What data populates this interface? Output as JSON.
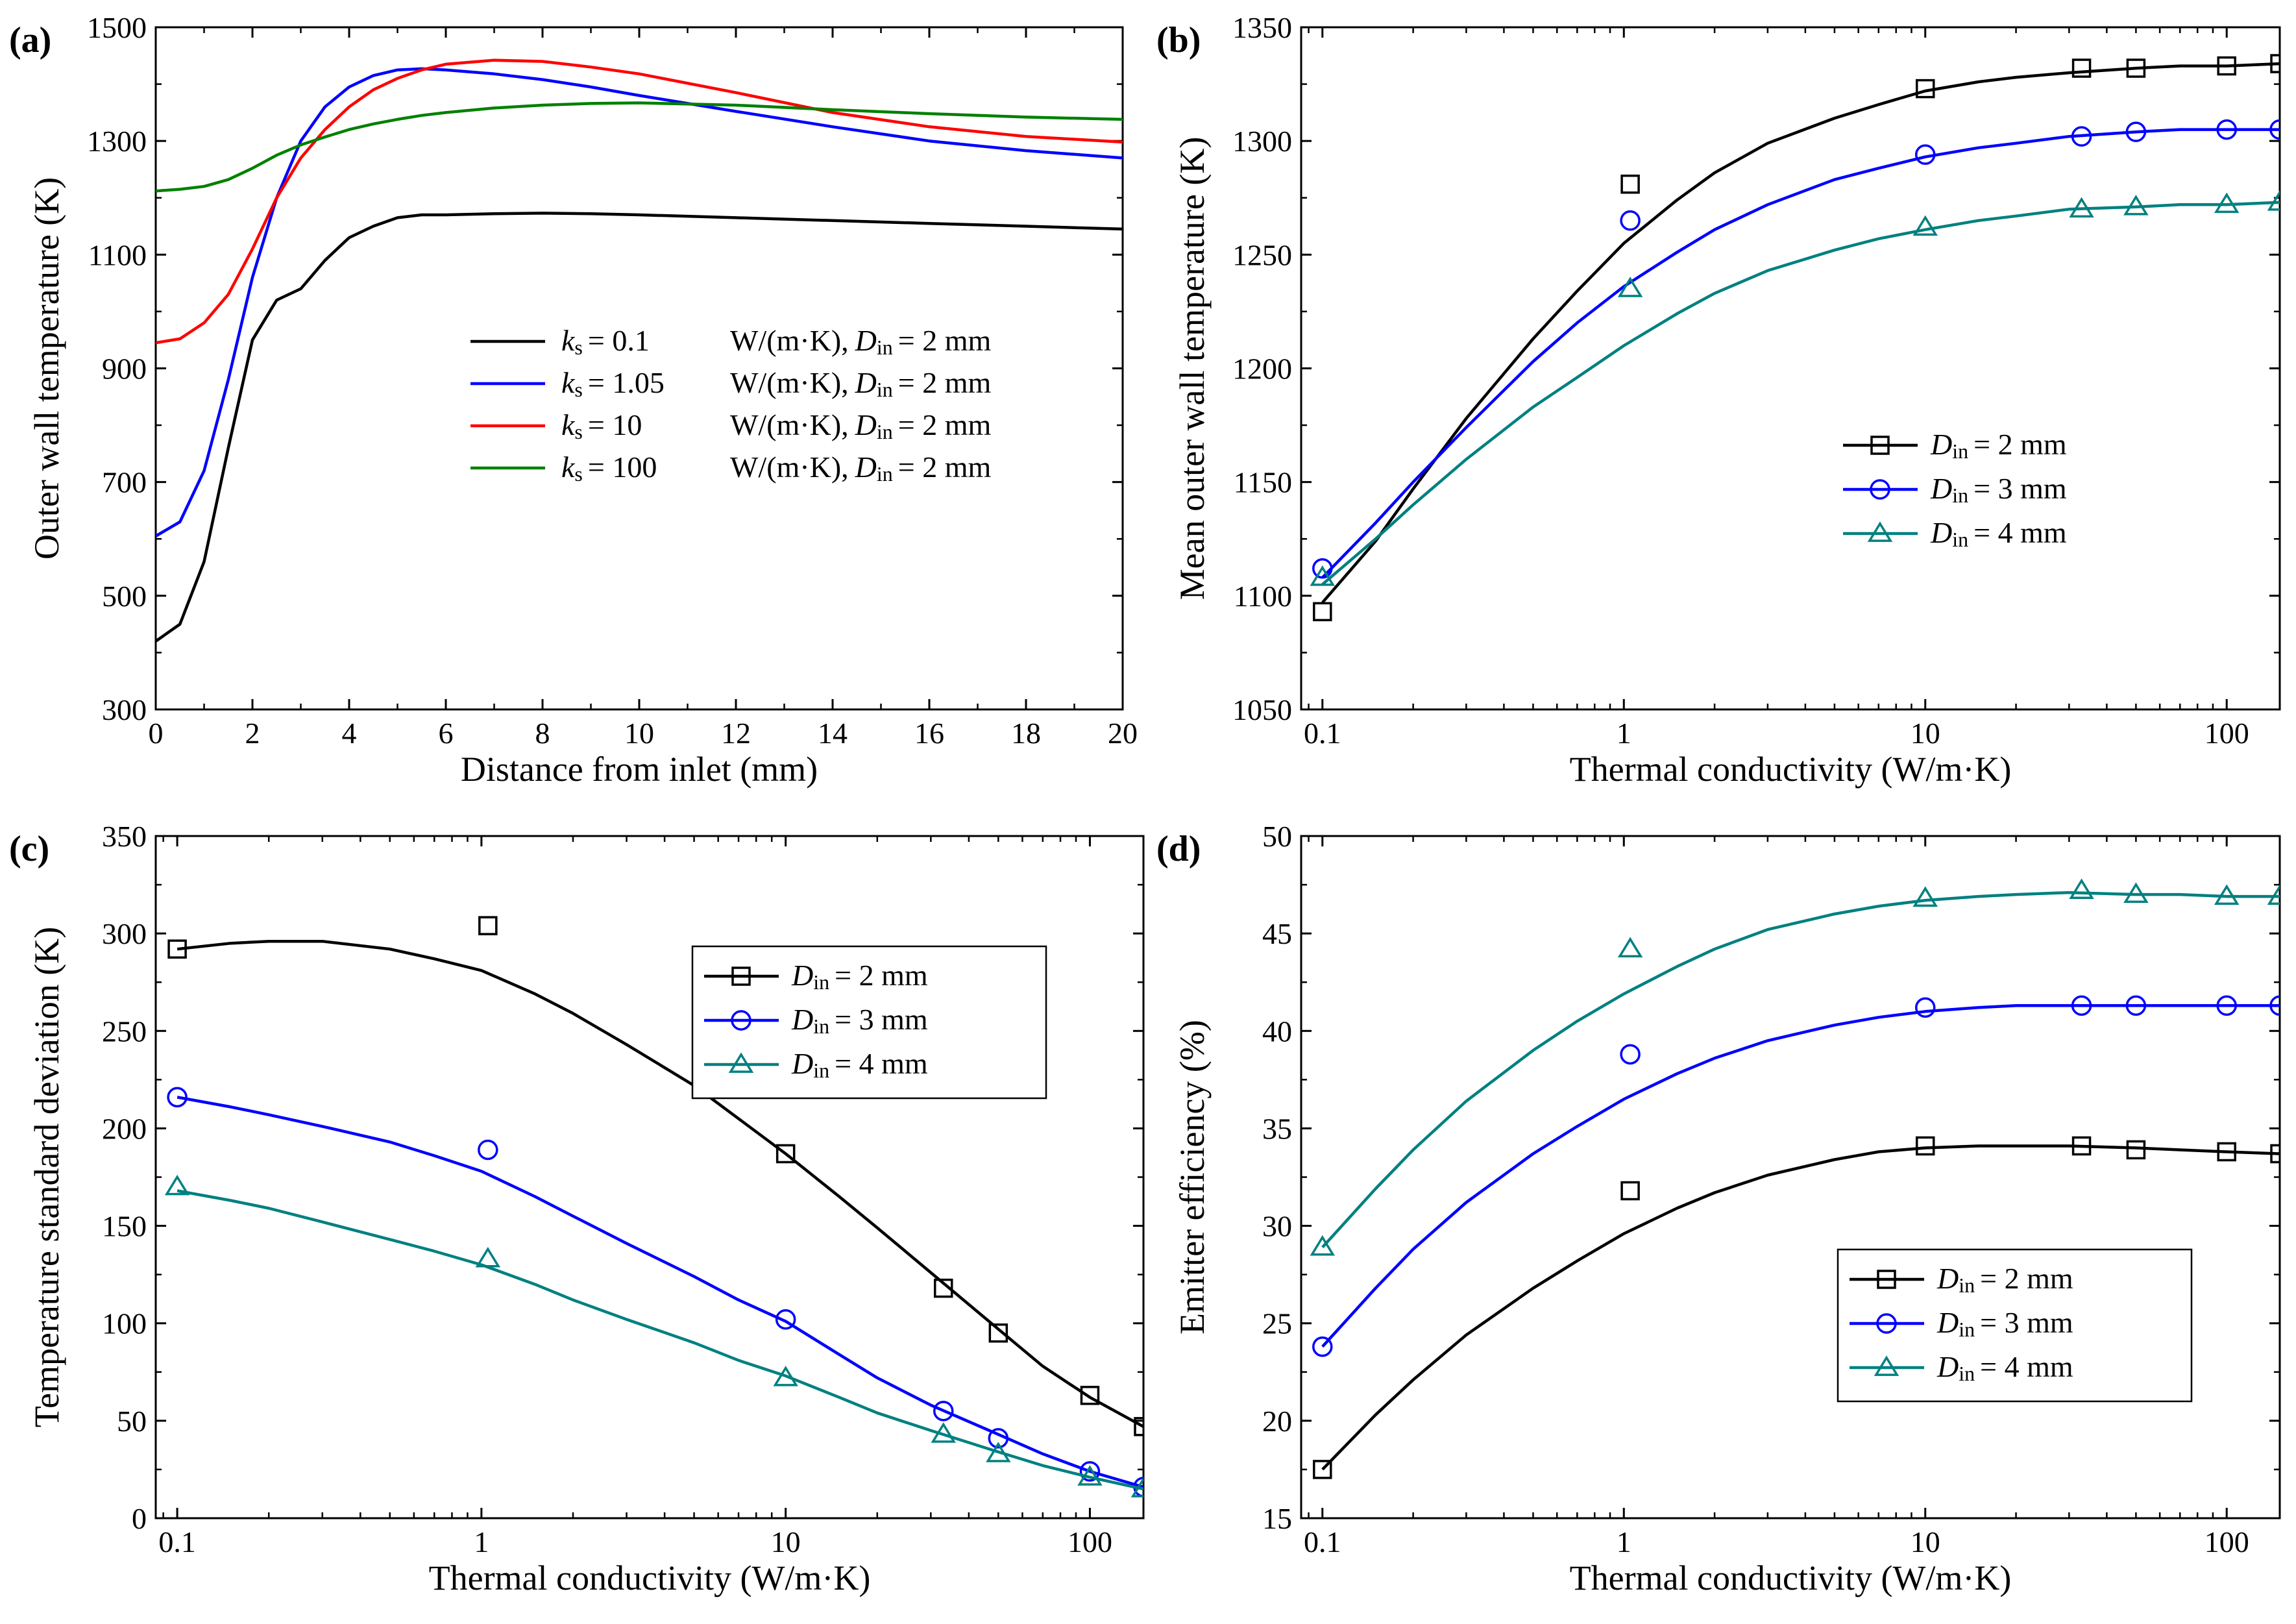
{
  "figure_label": "Four-panel figure",
  "chart_data": [
    {
      "id": "a",
      "panel_label": "(a)",
      "type": "line",
      "xscale": "linear",
      "xlabel": "Distance from inlet (mm)",
      "ylabel": "Outer wall temperature (K)",
      "xlim": [
        0,
        20
      ],
      "ylim": [
        300,
        1500
      ],
      "xticks": [
        0,
        2,
        4,
        6,
        8,
        10,
        12,
        14,
        16,
        18,
        20
      ],
      "xtick_labels": [
        "0",
        "2",
        "4",
        "6",
        "8",
        "10",
        "12",
        "14",
        "16",
        "18",
        "20"
      ],
      "yticks": [
        300,
        500,
        700,
        900,
        1100,
        1300,
        1500
      ],
      "ytick_labels": [
        "300",
        "500",
        "700",
        "900",
        "1100",
        "1300",
        "1500"
      ],
      "legend_position": "center-right",
      "series": [
        {
          "name": "ks = 0.1 W/(m·K), Din = 2 mm",
          "k_value": "0.1",
          "color": "#000000",
          "x": [
            0,
            0.5,
            1,
            1.5,
            2,
            2.5,
            3,
            3.5,
            4,
            4.5,
            5,
            5.5,
            6,
            7,
            8,
            9,
            10,
            12,
            14,
            16,
            18,
            20
          ],
          "y": [
            420,
            450,
            560,
            760,
            950,
            1020,
            1040,
            1090,
            1130,
            1150,
            1165,
            1170,
            1170,
            1172,
            1173,
            1172,
            1170,
            1165,
            1160,
            1155,
            1150,
            1145
          ]
        },
        {
          "name": "ks = 1.05 W/(m·K), Din = 2 mm",
          "k_value": "1.05",
          "color": "#0000ff",
          "x": [
            0,
            0.5,
            1,
            1.5,
            2,
            2.5,
            3,
            3.5,
            4,
            4.5,
            5,
            5.5,
            6,
            7,
            8,
            9,
            10,
            12,
            14,
            16,
            18,
            20
          ],
          "y": [
            605,
            630,
            720,
            880,
            1060,
            1200,
            1300,
            1360,
            1395,
            1415,
            1425,
            1427,
            1425,
            1418,
            1408,
            1395,
            1380,
            1352,
            1325,
            1300,
            1283,
            1270
          ]
        },
        {
          "name": "ks = 10 W/(m·K), Din = 2 mm",
          "k_value": "10",
          "color": "#ff0000",
          "x": [
            0,
            0.5,
            1,
            1.5,
            2,
            2.5,
            3,
            3.5,
            4,
            4.5,
            5,
            5.5,
            6,
            7,
            8,
            9,
            10,
            12,
            14,
            16,
            18,
            20
          ],
          "y": [
            945,
            952,
            980,
            1030,
            1110,
            1200,
            1270,
            1320,
            1360,
            1390,
            1410,
            1425,
            1435,
            1442,
            1440,
            1430,
            1418,
            1385,
            1350,
            1325,
            1308,
            1298
          ]
        },
        {
          "name": "ks = 100 W/(m·K), Din = 2 mm",
          "k_value": "100",
          "color": "#008000",
          "x": [
            0,
            0.5,
            1,
            1.5,
            2,
            2.5,
            3,
            3.5,
            4,
            4.5,
            5,
            5.5,
            6,
            7,
            8,
            9,
            10,
            12,
            14,
            16,
            18,
            20
          ],
          "y": [
            1212,
            1215,
            1220,
            1232,
            1252,
            1275,
            1293,
            1307,
            1320,
            1330,
            1338,
            1345,
            1350,
            1358,
            1363,
            1366,
            1367,
            1363,
            1355,
            1348,
            1342,
            1338
          ]
        }
      ],
      "legend": [
        {
          "sym": "k",
          "sub": "s",
          "eq": "= 0.1",
          "unit": "W/(m·K),",
          "sym2": "D",
          "sub2": "in",
          "eq2": "= 2 mm",
          "color": "#000000"
        },
        {
          "sym": "k",
          "sub": "s",
          "eq": "= 1.05",
          "unit": "W/(m·K),",
          "sym2": "D",
          "sub2": "in",
          "eq2": "= 2 mm",
          "color": "#0000ff"
        },
        {
          "sym": "k",
          "sub": "s",
          "eq": "= 10",
          "unit": "W/(m·K),",
          "sym2": "D",
          "sub2": "in",
          "eq2": "= 2 mm",
          "color": "#ff0000"
        },
        {
          "sym": "k",
          "sub": "s",
          "eq": "= 100",
          "unit": "W/(m·K),",
          "sym2": "D",
          "sub2": "in",
          "eq2": "= 2 mm",
          "color": "#008000"
        }
      ]
    },
    {
      "id": "b",
      "panel_label": "(b)",
      "type": "scatter",
      "xscale": "log",
      "xlabel": "Thermal conductivity (W/m·K)",
      "ylabel": "Mean outer wall temperature (K)",
      "xlim": [
        0.085,
        150
      ],
      "ylim": [
        1050,
        1350
      ],
      "xticks": [
        0.1,
        1,
        10,
        100
      ],
      "xtick_labels": [
        "0.1",
        "1",
        "10",
        "100"
      ],
      "yticks": [
        1050,
        1100,
        1150,
        1200,
        1250,
        1300,
        1350
      ],
      "ytick_labels": [
        "1050",
        "1100",
        "1150",
        "1200",
        "1250",
        "1300",
        "1350"
      ],
      "legend_position": "center-right",
      "series": [
        {
          "name": "Din = 2 mm",
          "label_d": "D",
          "label_sub": "in",
          "label_eq": "= 2 mm",
          "marker": "square",
          "color": "#000000",
          "points_x": [
            0.1,
            1.05,
            10,
            33,
            50,
            100,
            150
          ],
          "points_y": [
            1093,
            1281,
            1323,
            1332,
            1332,
            1333,
            1334
          ],
          "fit_x": [
            0.1,
            0.15,
            0.2,
            0.3,
            0.5,
            0.7,
            1,
            1.5,
            2,
            3,
            5,
            7,
            10,
            15,
            20,
            30,
            50,
            70,
            100,
            150
          ],
          "fit_y": [
            1097,
            1124,
            1147,
            1178,
            1213,
            1234,
            1255,
            1274,
            1286,
            1299,
            1310,
            1316,
            1322,
            1326,
            1328,
            1330,
            1332,
            1333,
            1333,
            1334
          ]
        },
        {
          "name": "Din = 3 mm",
          "label_d": "D",
          "label_sub": "in",
          "label_eq": "= 3 mm",
          "marker": "circle",
          "color": "#0000ff",
          "points_x": [
            0.1,
            1.05,
            10,
            33,
            50,
            100,
            150
          ],
          "points_y": [
            1112,
            1265,
            1294,
            1302,
            1304,
            1305,
            1305
          ],
          "fit_x": [
            0.1,
            0.15,
            0.2,
            0.3,
            0.5,
            0.7,
            1,
            1.5,
            2,
            3,
            5,
            7,
            10,
            15,
            20,
            30,
            50,
            70,
            100,
            150
          ],
          "fit_y": [
            1108,
            1132,
            1150,
            1174,
            1203,
            1220,
            1236,
            1251,
            1261,
            1272,
            1283,
            1288,
            1293,
            1297,
            1299,
            1302,
            1304,
            1305,
            1305,
            1305
          ]
        },
        {
          "name": "Din = 4 mm",
          "label_d": "D",
          "label_sub": "in",
          "label_eq": "= 4 mm",
          "marker": "triangle",
          "color": "#008080",
          "points_x": [
            0.1,
            1.05,
            10,
            33,
            50,
            100,
            150
          ],
          "points_y": [
            1108,
            1235,
            1262,
            1270,
            1271,
            1272,
            1273
          ],
          "fit_x": [
            0.1,
            0.15,
            0.2,
            0.3,
            0.5,
            0.7,
            1,
            1.5,
            2,
            3,
            5,
            7,
            10,
            15,
            20,
            30,
            50,
            70,
            100,
            150
          ],
          "fit_y": [
            1105,
            1125,
            1140,
            1160,
            1183,
            1196,
            1210,
            1224,
            1233,
            1243,
            1252,
            1257,
            1261,
            1265,
            1267,
            1270,
            1271,
            1272,
            1272,
            1273
          ]
        }
      ]
    },
    {
      "id": "c",
      "panel_label": "(c)",
      "type": "scatter",
      "xscale": "log",
      "xlabel": "Thermal conductivity (W/m·K)",
      "ylabel": "Temperature standard deviation (K)",
      "xlim": [
        0.085,
        150
      ],
      "ylim": [
        0,
        350
      ],
      "xticks": [
        0.1,
        1,
        10,
        100
      ],
      "xtick_labels": [
        "0.1",
        "1",
        "10",
        "100"
      ],
      "yticks": [
        0,
        50,
        100,
        150,
        200,
        250,
        300,
        350
      ],
      "ytick_labels": [
        "0",
        "50",
        "100",
        "150",
        "200",
        "250",
        "300",
        "350"
      ],
      "legend_position": "top-right",
      "series": [
        {
          "name": "Din = 2 mm",
          "label_d": "D",
          "label_sub": "in",
          "label_eq": "= 2 mm",
          "marker": "square",
          "color": "#000000",
          "points_x": [
            0.1,
            1.05,
            10,
            33,
            50,
            100,
            150
          ],
          "points_y": [
            292,
            304,
            187,
            118,
            95,
            63,
            47
          ],
          "fit_x": [
            0.1,
            0.15,
            0.2,
            0.3,
            0.5,
            0.7,
            1,
            1.5,
            2,
            3,
            5,
            7,
            10,
            15,
            20,
            30,
            50,
            70,
            100,
            150
          ],
          "fit_y": [
            292,
            295,
            296,
            296,
            292,
            287,
            281,
            269,
            259,
            243,
            222,
            205,
            187,
            165,
            149,
            126,
            97,
            78,
            62,
            47
          ]
        },
        {
          "name": "Din = 3 mm",
          "label_d": "D",
          "label_sub": "in",
          "label_eq": "= 3 mm",
          "marker": "circle",
          "color": "#0000ff",
          "points_x": [
            0.1,
            1.05,
            10,
            33,
            50,
            100,
            150
          ],
          "points_y": [
            216,
            189,
            102,
            55,
            41,
            24,
            16
          ],
          "fit_x": [
            0.1,
            0.15,
            0.2,
            0.3,
            0.5,
            0.7,
            1,
            1.5,
            2,
            3,
            5,
            7,
            10,
            15,
            20,
            30,
            50,
            70,
            100,
            150
          ],
          "fit_y": [
            216,
            211,
            207,
            201,
            193,
            186,
            178,
            165,
            155,
            141,
            124,
            112,
            101,
            84,
            72,
            58,
            43,
            33,
            24,
            16
          ]
        },
        {
          "name": "Din = 4 mm",
          "label_d": "D",
          "label_sub": "in",
          "label_eq": "= 4 mm",
          "marker": "triangle",
          "color": "#008080",
          "points_x": [
            0.1,
            1.05,
            10,
            33,
            50,
            100,
            150
          ],
          "points_y": [
            170,
            133,
            72,
            43,
            33,
            21,
            15
          ],
          "fit_x": [
            0.1,
            0.15,
            0.2,
            0.3,
            0.5,
            0.7,
            1,
            1.5,
            2,
            3,
            5,
            7,
            10,
            15,
            20,
            30,
            50,
            70,
            100,
            150
          ],
          "fit_y": [
            168,
            163,
            159,
            152,
            143,
            137,
            130,
            120,
            112,
            102,
            90,
            81,
            73,
            62,
            54,
            45,
            34,
            27,
            21,
            15
          ]
        }
      ]
    },
    {
      "id": "d",
      "panel_label": "(d)",
      "type": "scatter",
      "xscale": "log",
      "xlabel": "Thermal conductivity (W/m·K)",
      "ylabel": "Emitter efficiency (%)",
      "xlim": [
        0.085,
        150
      ],
      "ylim": [
        15,
        50
      ],
      "xticks": [
        0.1,
        1,
        10,
        100
      ],
      "xtick_labels": [
        "0.1",
        "1",
        "10",
        "100"
      ],
      "yticks": [
        15,
        20,
        25,
        30,
        35,
        40,
        45,
        50
      ],
      "ytick_labels": [
        "15",
        "20",
        "25",
        "30",
        "35",
        "40",
        "45",
        "50"
      ],
      "legend_position": "bottom-right",
      "series": [
        {
          "name": "Din = 2 mm",
          "label_d": "D",
          "label_sub": "in",
          "label_eq": "= 2 mm",
          "marker": "square",
          "color": "#000000",
          "points_x": [
            0.1,
            1.05,
            10,
            33,
            50,
            100,
            150
          ],
          "points_y": [
            17.5,
            31.8,
            34.1,
            34.1,
            33.9,
            33.8,
            33.7
          ],
          "fit_x": [
            0.1,
            0.15,
            0.2,
            0.3,
            0.5,
            0.7,
            1,
            1.5,
            2,
            3,
            5,
            7,
            10,
            15,
            20,
            30,
            50,
            70,
            100,
            150
          ],
          "fit_y": [
            17.5,
            20.3,
            22.1,
            24.4,
            26.8,
            28.2,
            29.6,
            30.9,
            31.7,
            32.6,
            33.4,
            33.8,
            34.0,
            34.1,
            34.1,
            34.1,
            34.0,
            33.9,
            33.8,
            33.7
          ]
        },
        {
          "name": "Din = 3 mm",
          "label_d": "D",
          "label_sub": "in",
          "label_eq": "= 3 mm",
          "marker": "circle",
          "color": "#0000ff",
          "points_x": [
            0.1,
            1.05,
            10,
            33,
            50,
            100,
            150
          ],
          "points_y": [
            23.8,
            38.8,
            41.2,
            41.3,
            41.3,
            41.3,
            41.3
          ],
          "fit_x": [
            0.1,
            0.15,
            0.2,
            0.3,
            0.5,
            0.7,
            1,
            1.5,
            2,
            3,
            5,
            7,
            10,
            15,
            20,
            30,
            50,
            70,
            100,
            150
          ],
          "fit_y": [
            23.8,
            26.8,
            28.8,
            31.2,
            33.7,
            35.1,
            36.5,
            37.8,
            38.6,
            39.5,
            40.3,
            40.7,
            41.0,
            41.2,
            41.3,
            41.3,
            41.3,
            41.3,
            41.3,
            41.3
          ]
        },
        {
          "name": "Din = 4 mm",
          "label_d": "D",
          "label_sub": "in",
          "label_eq": "= 4 mm",
          "marker": "triangle",
          "color": "#008080",
          "points_x": [
            0.1,
            1.05,
            10,
            33,
            50,
            100,
            150
          ],
          "points_y": [
            28.9,
            44.2,
            46.8,
            47.2,
            47.0,
            46.9,
            46.9
          ],
          "fit_x": [
            0.1,
            0.15,
            0.2,
            0.3,
            0.5,
            0.7,
            1,
            1.5,
            2,
            3,
            5,
            7,
            10,
            15,
            20,
            30,
            50,
            70,
            100,
            150
          ],
          "fit_y": [
            28.9,
            31.9,
            33.9,
            36.4,
            39.0,
            40.5,
            41.9,
            43.3,
            44.2,
            45.2,
            46.0,
            46.4,
            46.7,
            46.9,
            47.0,
            47.1,
            47.0,
            47.0,
            46.9,
            46.9
          ]
        }
      ]
    }
  ]
}
